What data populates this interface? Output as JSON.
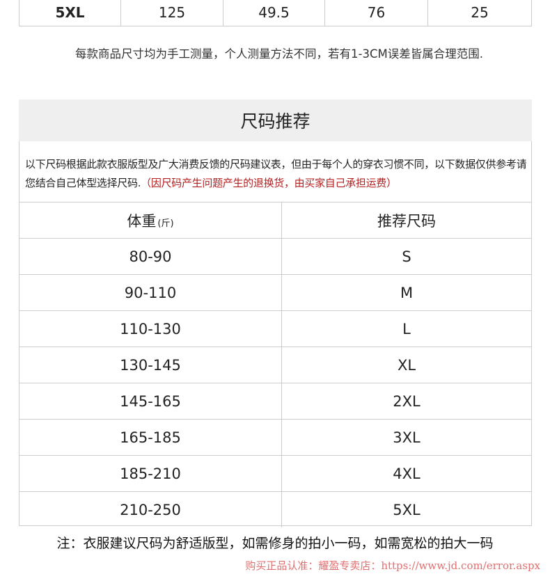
{
  "top_table": {
    "row": [
      "5XL",
      "125",
      "49.5",
      "76",
      "25"
    ]
  },
  "measure_note": "每款商品尺寸均为手工测量，个人测量方法不同，若有1-3CM误差皆属合理范围.",
  "section_title": "尺码推荐",
  "description": "以下尺码根据此款衣服版型及广大消费反馈的尺码建议表，但由于每个人的穿衣习惯不同，以下数据仅供参考请您结合自己体型选择尺码.",
  "description_red": "（因尺码产生问题产生的退换货，由买家自己承担运费）",
  "table": {
    "headers": [
      "体重",
      "推荐尺码"
    ],
    "weight_unit": "(斤)",
    "rows": [
      [
        "80-90",
        "S"
      ],
      [
        "90-110",
        "M"
      ],
      [
        "110-130",
        "L"
      ],
      [
        "130-145",
        "XL"
      ],
      [
        "145-165",
        "2XL"
      ],
      [
        "165-185",
        "3XL"
      ],
      [
        "185-210",
        "4XL"
      ],
      [
        "210-250",
        "5XL"
      ]
    ]
  },
  "footer_note": "注：衣服建议尺码为舒适版型，如需修身的拍小一码，如需宽松的拍大一码",
  "watermark": "购买正品认准：耀盈专卖店：https://www.jd.com/error.aspx",
  "colors": {
    "header_bg": "#efefef",
    "red_text": "#b51f1f",
    "watermark": "#e07070"
  }
}
